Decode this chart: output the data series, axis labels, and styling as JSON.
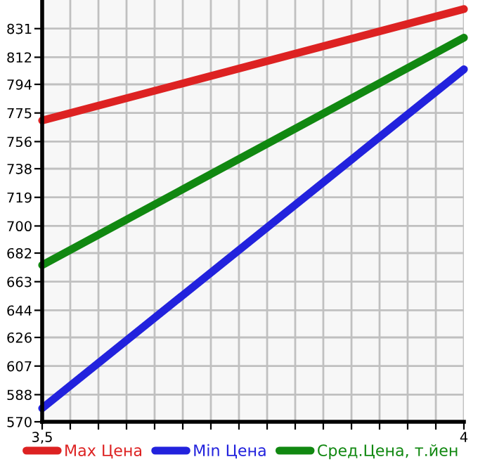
{
  "chart_data": {
    "type": "line",
    "x": [
      3.5,
      4
    ],
    "series": [
      {
        "name": "Max Цена",
        "color": "#dd2222",
        "values": [
          770,
          844
        ]
      },
      {
        "name": "Min Цена",
        "color": "#2222dd",
        "values": [
          579,
          804
        ]
      },
      {
        "name": "Сред.Цена, т.йен",
        "color": "#118811",
        "values": [
          674,
          825
        ]
      }
    ],
    "xlim": [
      3.5,
      4
    ],
    "xticks": [
      {
        "value": 3.5,
        "label": "3,5"
      },
      {
        "value": 3.5333,
        "label": null
      },
      {
        "value": 3.5667,
        "label": null
      },
      {
        "value": 3.6,
        "label": null
      },
      {
        "value": 3.6333,
        "label": null
      },
      {
        "value": 3.6667,
        "label": null
      },
      {
        "value": 3.7,
        "label": null
      },
      {
        "value": 3.7333,
        "label": null
      },
      {
        "value": 3.7667,
        "label": null
      },
      {
        "value": 3.8,
        "label": null
      },
      {
        "value": 3.8333,
        "label": null
      },
      {
        "value": 3.8667,
        "label": null
      },
      {
        "value": 3.9,
        "label": null
      },
      {
        "value": 3.9333,
        "label": null
      },
      {
        "value": 3.9667,
        "label": null
      },
      4
    ],
    "ylim": [
      570,
      850
    ],
    "yticks": [
      570,
      588,
      607,
      626,
      644,
      663,
      682,
      700,
      719,
      738,
      756,
      775,
      794,
      812,
      831
    ],
    "grid": true,
    "legend": "bottom",
    "marker": "none",
    "line_style": "solid"
  }
}
